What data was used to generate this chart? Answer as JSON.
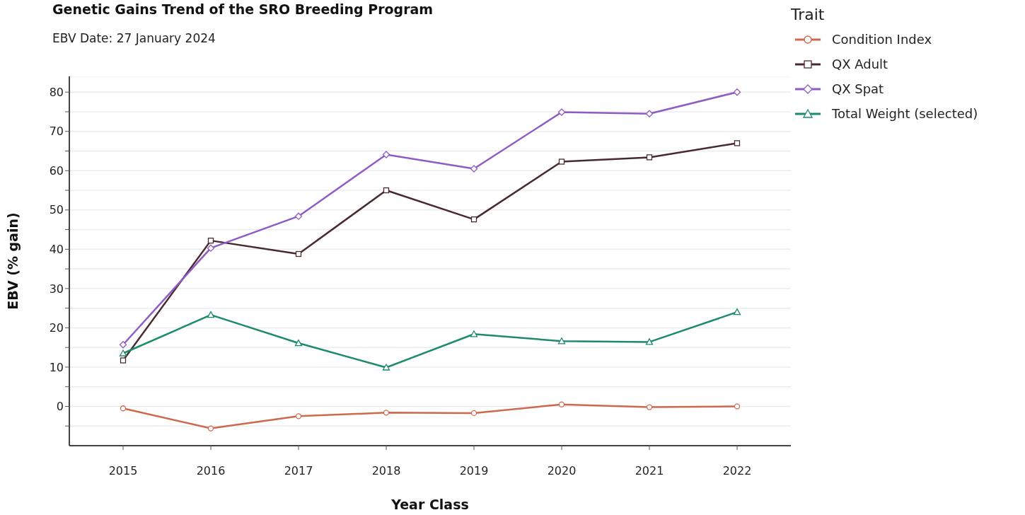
{
  "chart_data": {
    "type": "line",
    "title": "Genetic Gains Trend of the SRO Breeding Program",
    "subtitle": "EBV Date: 27 January 2024",
    "xlabel": "Year Class",
    "ylabel": "EBV (% gain)",
    "legend_title": "Trait",
    "legend": "top right",
    "grid": "y",
    "line_style": "solid",
    "categories": [
      "2015",
      "2016",
      "2017",
      "2018",
      "2019",
      "2020",
      "2021",
      "2022"
    ],
    "ylim": [
      -10,
      84
    ],
    "yticks": [
      {
        "value": -5,
        "label": null
      },
      0,
      {
        "value": 5,
        "label": null
      },
      10,
      {
        "value": 15,
        "label": null
      },
      20,
      {
        "value": 25,
        "label": null
      },
      30,
      {
        "value": 35,
        "label": null
      },
      40,
      {
        "value": 45,
        "label": null
      },
      50,
      {
        "value": 55,
        "label": null
      },
      60,
      {
        "value": 65,
        "label": null
      },
      70,
      {
        "value": 75,
        "label": null
      },
      80
    ],
    "series": [
      {
        "name": "Condition Index",
        "color": "#cd6a4e",
        "marker": "circle",
        "values": [
          -0.5,
          -5.6,
          -2.5,
          -1.6,
          -1.7,
          0.5,
          -0.2,
          0
        ]
      },
      {
        "name": "QX Adult",
        "color": "#4a2a2e",
        "marker": "square",
        "values": [
          11.7,
          42.2,
          38.8,
          55,
          47.6,
          62.3,
          63.4,
          67
        ]
      },
      {
        "name": "QX Spat",
        "color": "#8e5cc4",
        "marker": "diamond",
        "values": [
          15.7,
          40.3,
          48.4,
          64.1,
          60.5,
          74.9,
          74.5,
          80
        ]
      },
      {
        "name": "Total Weight (selected)",
        "color": "#1e8a6e",
        "marker": "triangle",
        "values": [
          13.5,
          23.3,
          16.1,
          9.9,
          18.4,
          16.6,
          16.4,
          24
        ]
      }
    ]
  }
}
